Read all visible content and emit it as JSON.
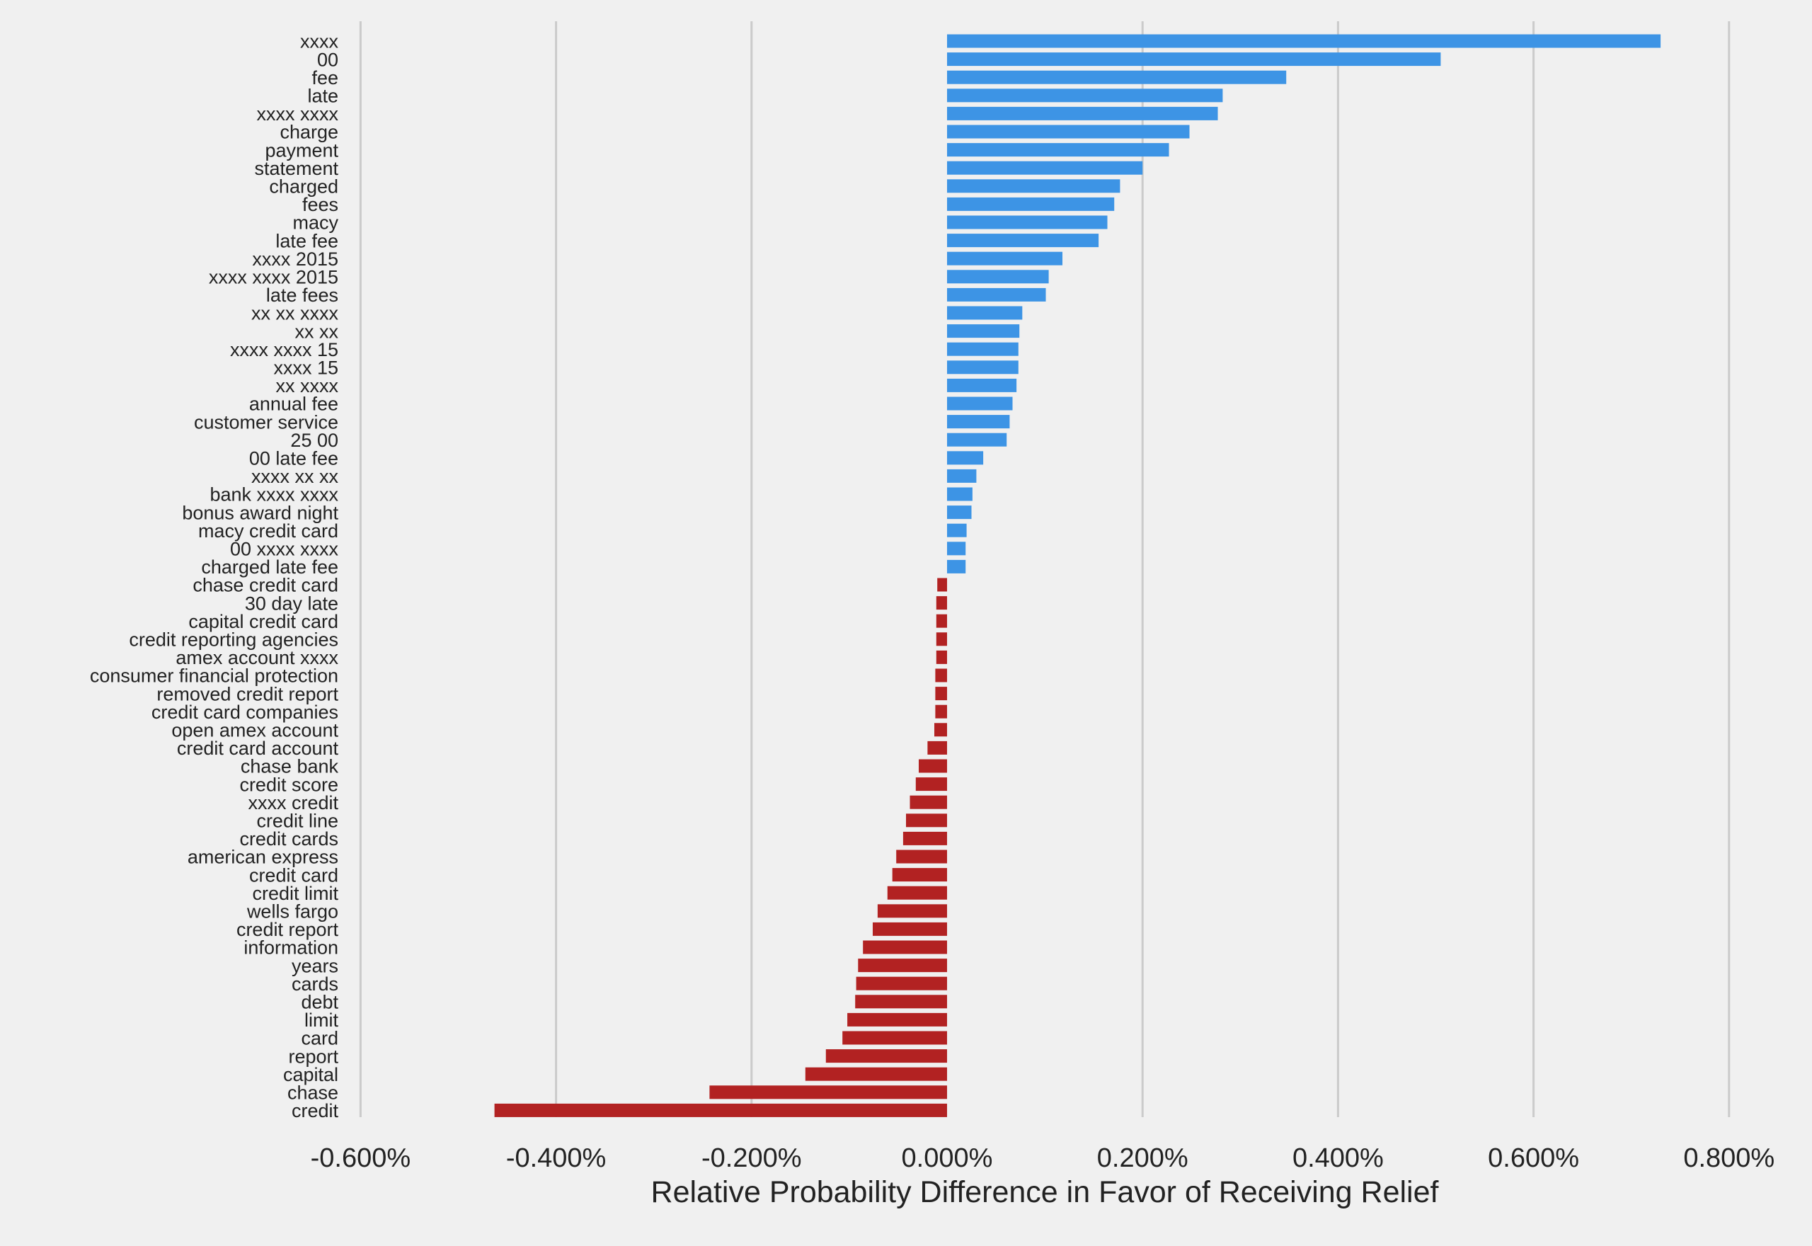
{
  "chart_data": {
    "type": "bar",
    "orientation": "horizontal",
    "title": "",
    "xlabel": "Relative Probability Difference in Favor of Receiving Relief",
    "ylabel": "",
    "xlim": [
      -0.6,
      0.8
    ],
    "xticks": [
      -0.6,
      -0.4,
      -0.2,
      0.0,
      0.2,
      0.4,
      0.6,
      0.8
    ],
    "xtick_labels": [
      "-0.600%",
      "-0.400%",
      "-0.200%",
      "0.000%",
      "0.200%",
      "0.400%",
      "0.600%",
      "0.800%"
    ],
    "grid": "vertical",
    "colors": {
      "positive": "#3d94e5",
      "negative": "#b22222",
      "background": "#f0f0f0",
      "grid": "#cbcbcb"
    },
    "categories": [
      "xxxx",
      "00",
      "fee",
      "late",
      "xxxx xxxx",
      "charge",
      "payment",
      "statement",
      "charged",
      "fees",
      "macy",
      "late fee",
      "xxxx 2015",
      "xxxx xxxx 2015",
      "late fees",
      "xx xx xxxx",
      "xx xx",
      "xxxx xxxx 15",
      "xxxx 15",
      "xx xxxx",
      "annual fee",
      "customer service",
      "25 00",
      "00 late fee",
      "xxxx xx xx",
      "bank xxxx xxxx",
      "bonus award night",
      "macy credit card",
      "00 xxxx xxxx",
      "charged late fee",
      "chase credit card",
      "30 day late",
      "capital credit card",
      "credit reporting agencies",
      "amex account xxxx",
      "consumer financial protection",
      "removed credit report",
      "credit card companies",
      "open amex account",
      "credit card account",
      "chase bank",
      "credit score",
      "xxxx credit",
      "credit line",
      "credit cards",
      "american express",
      "credit card",
      "credit limit",
      "wells fargo",
      "credit report",
      "information",
      "years",
      "cards",
      "debt",
      "limit",
      "card",
      "report",
      "capital",
      "chase",
      "credit"
    ],
    "values": [
      0.73,
      0.505,
      0.347,
      0.282,
      0.277,
      0.248,
      0.227,
      0.2,
      0.177,
      0.171,
      0.164,
      0.155,
      0.118,
      0.104,
      0.101,
      0.077,
      0.074,
      0.073,
      0.073,
      0.071,
      0.067,
      0.064,
      0.061,
      0.037,
      0.03,
      0.026,
      0.025,
      0.02,
      0.019,
      0.019,
      -0.01,
      -0.011,
      -0.011,
      -0.011,
      -0.011,
      -0.012,
      -0.012,
      -0.012,
      -0.013,
      -0.02,
      -0.029,
      -0.032,
      -0.038,
      -0.042,
      -0.045,
      -0.052,
      -0.056,
      -0.061,
      -0.071,
      -0.076,
      -0.086,
      -0.091,
      -0.093,
      -0.094,
      -0.102,
      -0.107,
      -0.124,
      -0.145,
      -0.243,
      -0.463
    ]
  }
}
